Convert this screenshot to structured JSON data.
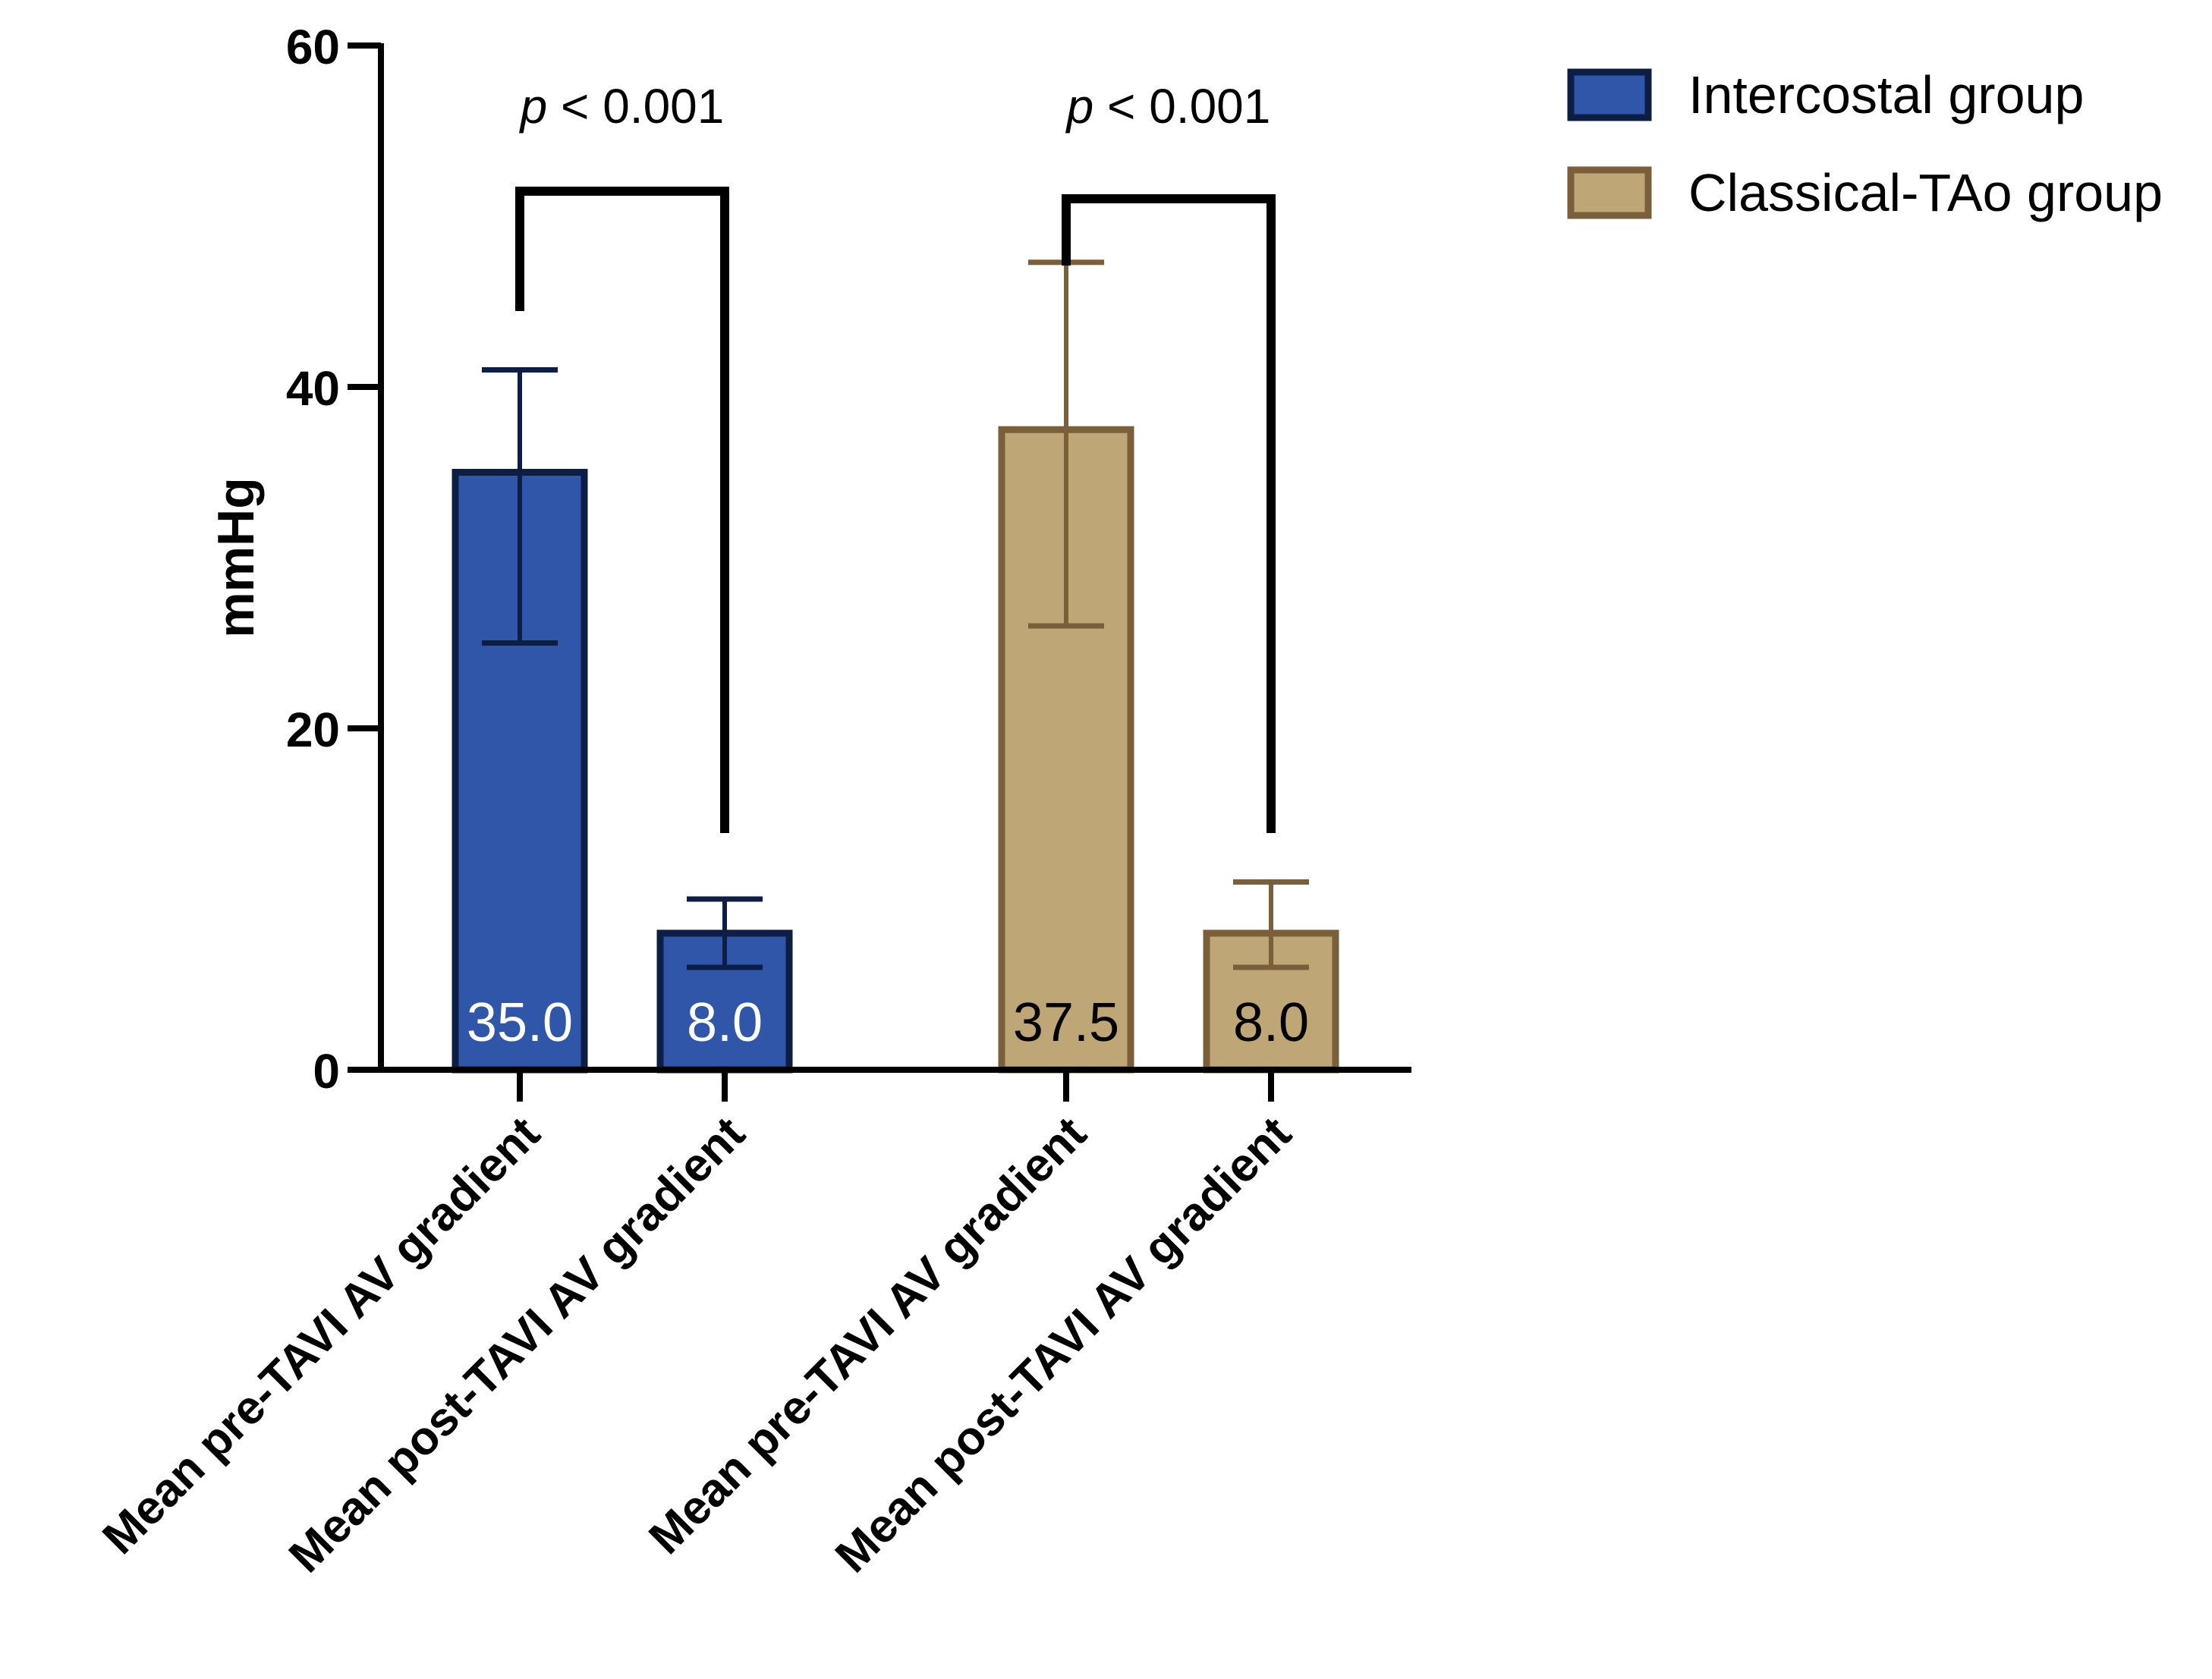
{
  "chart_data": {
    "type": "bar",
    "ylabel": "mmHg",
    "ylim": [
      0,
      60
    ],
    "yticks": [
      0,
      20,
      40,
      60
    ],
    "categories": [
      "Mean pre-TAVI AV gradient",
      "Mean post-TAVI AV gradient",
      "Mean pre-TAVI AV gradient",
      "Mean post-TAVI AV gradient"
    ],
    "bars": [
      {
        "group": "Intercostal group",
        "label": "Mean pre-TAVI AV gradient",
        "value": 35.0,
        "value_label": "35.0",
        "err_low": 25,
        "err_high": 41
      },
      {
        "group": "Intercostal group",
        "label": "Mean post-TAVI AV gradient",
        "value": 8.0,
        "value_label": "8.0",
        "err_low": 6,
        "err_high": 10
      },
      {
        "group": "Classical-TAo group",
        "label": "Mean pre-TAVI AV gradient",
        "value": 37.5,
        "value_label": "37.5",
        "err_low": 26,
        "err_high": 47.3
      },
      {
        "group": "Classical-TAo group",
        "label": "Mean post-TAVI AV gradient",
        "value": 8.0,
        "value_label": "8.0",
        "err_low": 6,
        "err_high": 11
      }
    ],
    "significance": [
      {
        "from_bar": 0,
        "to_bar": 1,
        "label_p": "p",
        "label_rest": " < 0.001",
        "bracket_y": 51.5
      },
      {
        "from_bar": 2,
        "to_bar": 3,
        "label_p": "p",
        "label_rest": " < 0.001",
        "bracket_y": 51.2
      }
    ],
    "legend": {
      "position": "top-right",
      "entries": [
        {
          "label": "Intercostal group",
          "fill": "#2f56a8",
          "stroke": "#0d1e44"
        },
        {
          "label": "Classical-TAo group",
          "fill": "#bfa677",
          "stroke": "#7a5f3a"
        }
      ]
    }
  },
  "colors": {
    "intercostal_fill": "#2f56a8",
    "intercostal_stroke": "#0d1e44",
    "intercostal_value_text": "#ffffff",
    "classical_fill": "#bfa677",
    "classical_stroke": "#7a5f3a",
    "classical_value_text": "#000000",
    "axis": "#000000"
  }
}
